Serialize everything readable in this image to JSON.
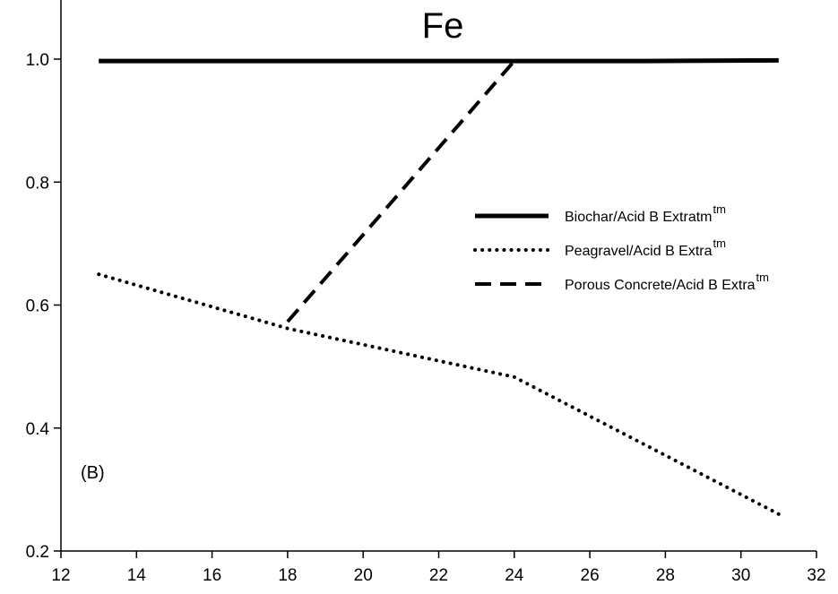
{
  "chart_data": {
    "type": "line",
    "title": "Fe",
    "annotation": "(B)",
    "xlabel": "",
    "ylabel": "",
    "xlim": [
      12,
      32
    ],
    "ylim": [
      0.2,
      1.0
    ],
    "x_ticks": [
      12,
      14,
      16,
      18,
      20,
      22,
      24,
      26,
      28,
      30,
      32
    ],
    "y_ticks": [
      0.2,
      0.4,
      0.6,
      0.8,
      1.0
    ],
    "x_tick_labels": [
      "12",
      "14",
      "16",
      "18",
      "20",
      "22",
      "24",
      "26",
      "28",
      "30",
      "32"
    ],
    "y_tick_labels": [
      "0.2",
      "0.4",
      "0.6",
      "0.8",
      "1.0"
    ],
    "legend_position": "right",
    "series": [
      {
        "name": "Biochar/Acid B Extratm",
        "name_main": "Biochar/Acid B Extratm",
        "name_sup": "tm",
        "style": "solid",
        "color": "#000000",
        "x": [
          13,
          27.5,
          31
        ],
        "y": [
          0.997,
          0.997,
          0.998
        ]
      },
      {
        "name": "Peagravel/Acid B Extratm",
        "name_main": "Peagravel/Acid B Extra",
        "name_sup": "tm",
        "style": "dotted",
        "color": "#000000",
        "x": [
          13,
          18,
          24,
          31
        ],
        "y": [
          0.65,
          0.562,
          0.483,
          0.26
        ]
      },
      {
        "name": "Porous Concrete/Acid B Extratm",
        "name_main": "Porous Concrete/Acid B Extra",
        "name_sup": "tm",
        "style": "dashed",
        "color": "#000000",
        "x": [
          18,
          24
        ],
        "y": [
          0.573,
          0.997
        ]
      }
    ]
  }
}
